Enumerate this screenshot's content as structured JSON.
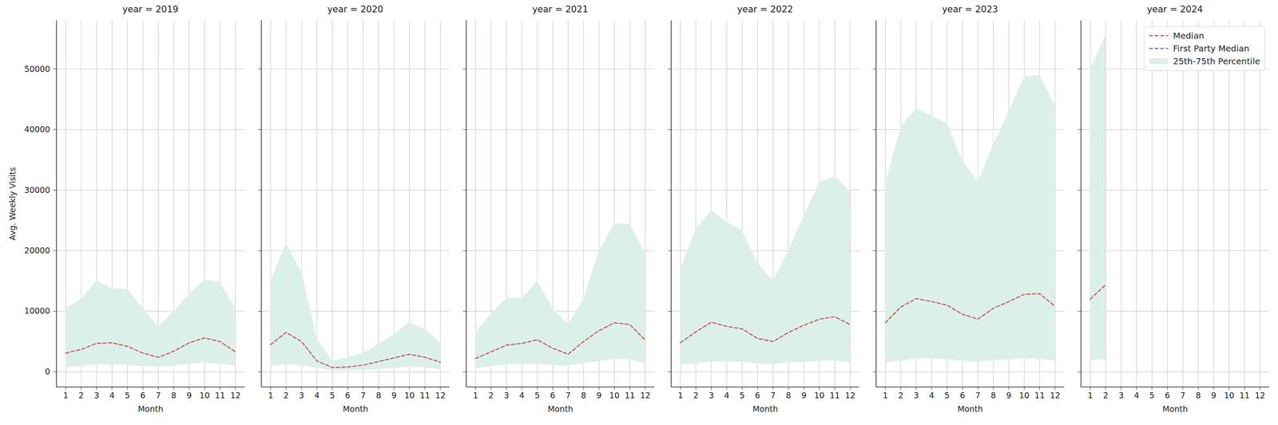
{
  "chart_data": {
    "type": "line",
    "x_label": "Month",
    "y_label": "Avg. Weekly Visits",
    "x": [
      1,
      2,
      3,
      4,
      5,
      6,
      7,
      8,
      9,
      10,
      11,
      12
    ],
    "xlim": [
      0.4,
      12.6
    ],
    "xticks": [
      1,
      2,
      3,
      4,
      5,
      6,
      7,
      8,
      9,
      10,
      11,
      12
    ],
    "ylim": [
      -2500,
      58000
    ],
    "yticks": [
      0,
      10000,
      20000,
      30000,
      40000,
      50000
    ],
    "grid": true,
    "legend": "upper right",
    "panels": [
      "year = 2019",
      "year = 2020",
      "year = 2021",
      "year = 2022",
      "year = 2023",
      "year = 2024"
    ],
    "series": [
      {
        "name": "Median",
        "color": "#c44e52",
        "line_style": "dashed",
        "values": [
          [
            3100,
            3700,
            4700,
            4800,
            4200,
            3100,
            2400,
            3400,
            4800,
            5600,
            5000,
            3300
          ],
          [
            4500,
            6500,
            5000,
            1800,
            700,
            800,
            1100,
            1700,
            2300,
            2900,
            2400,
            1600
          ],
          [
            2200,
            3300,
            4400,
            4700,
            5300,
            3900,
            2900,
            5000,
            6800,
            8100,
            7800,
            5200
          ],
          [
            4800,
            6600,
            8200,
            7500,
            7100,
            5500,
            5000,
            6500,
            7700,
            8700,
            9100,
            7800
          ],
          [
            8100,
            10700,
            12100,
            11600,
            11000,
            9500,
            8700,
            10500,
            11600,
            12800,
            12900,
            10800
          ],
          [
            12000,
            14400,
            null,
            null,
            null,
            null,
            null,
            null,
            null,
            null,
            null,
            null
          ]
        ]
      },
      {
        "name": "First Party Median",
        "color": "#4c72b0",
        "line_style": "dashed",
        "values": [
          [
            null,
            null,
            null,
            null,
            null,
            null,
            null,
            null,
            null,
            null,
            null,
            null
          ],
          [
            null,
            null,
            null,
            null,
            null,
            null,
            null,
            null,
            null,
            null,
            null,
            null
          ],
          [
            null,
            null,
            null,
            null,
            null,
            null,
            null,
            null,
            null,
            null,
            null,
            null
          ],
          [
            null,
            null,
            null,
            null,
            null,
            null,
            null,
            null,
            null,
            null,
            null,
            null
          ],
          [
            null,
            null,
            null,
            null,
            null,
            null,
            null,
            null,
            null,
            null,
            null,
            null
          ],
          [
            null,
            null,
            null,
            null,
            null,
            null,
            null,
            null,
            null,
            null,
            null,
            null
          ]
        ]
      },
      {
        "name": "25th-75th Percentile",
        "color": "#dcf0ea",
        "type": "area",
        "low": [
          [
            700,
            900,
            1200,
            1200,
            1100,
            900,
            800,
            1000,
            1300,
            1500,
            1300,
            1000
          ],
          [
            900,
            1200,
            1100,
            600,
            200,
            200,
            300,
            400,
            600,
            800,
            700,
            400
          ],
          [
            600,
            900,
            1200,
            1200,
            1300,
            1100,
            1000,
            1400,
            1700,
            2100,
            2000,
            1400
          ],
          [
            1200,
            1300,
            1700,
            1700,
            1600,
            1300,
            1200,
            1500,
            1600,
            1800,
            1800,
            1600
          ],
          [
            1500,
            1800,
            2200,
            2200,
            2000,
            1800,
            1600,
            1900,
            2000,
            2200,
            2100,
            1800
          ],
          [
            1900,
            2100,
            null,
            null,
            null,
            null,
            null,
            null,
            null,
            null,
            null,
            null
          ]
        ],
        "high": [
          [
            10500,
            12000,
            15000,
            13800,
            13600,
            10500,
            7500,
            10000,
            12800,
            15200,
            14800,
            10500
          ],
          [
            15000,
            21200,
            16500,
            5500,
            1800,
            2400,
            3100,
            4600,
            6200,
            8200,
            7000,
            4800
          ],
          [
            6500,
            9500,
            12200,
            12100,
            15000,
            10500,
            7800,
            12000,
            20000,
            24500,
            24400,
            19500
          ],
          [
            17000,
            23500,
            26700,
            24800,
            23300,
            18000,
            15000,
            20000,
            25800,
            31300,
            32300,
            29800
          ],
          [
            31000,
            40500,
            43500,
            42300,
            41000,
            34800,
            31400,
            37500,
            43000,
            48700,
            49000,
            44000
          ],
          [
            50000,
            55500,
            null,
            null,
            null,
            null,
            null,
            null,
            null,
            null,
            null,
            null
          ]
        ]
      }
    ]
  }
}
